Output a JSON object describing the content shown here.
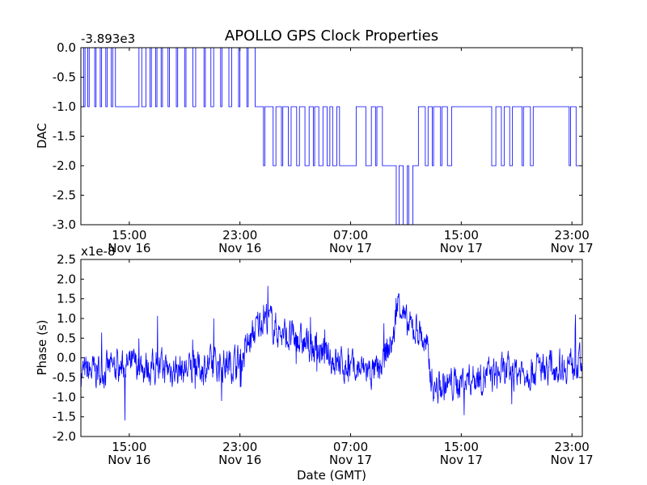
{
  "chart_data": [
    {
      "type": "line",
      "title": "APOLLO GPS Clock Properties",
      "xlabel": "",
      "ylabel": "DAC",
      "offset_label": "-3.893e3",
      "x_units": "hours since Nov 16 00:00 GMT",
      "xlim": [
        11.5,
        47.75
      ],
      "ylim": [
        -3.0,
        0.0
      ],
      "yticks": [
        "0.0",
        "-0.5",
        "-1.0",
        "-1.5",
        "-2.0",
        "-2.5",
        "-3.0"
      ],
      "ytick_values": [
        0,
        -0.5,
        -1,
        -1.5,
        -2,
        -2.5,
        -3
      ],
      "xticks": [
        {
          "value": 15,
          "time": "15:00",
          "date": "Nov 16"
        },
        {
          "value": 23,
          "time": "23:00",
          "date": "Nov 16"
        },
        {
          "value": 31,
          "time": "07:00",
          "date": "Nov 17"
        },
        {
          "value": 39,
          "time": "15:00",
          "date": "Nov 17"
        },
        {
          "value": 47,
          "time": "23:00",
          "date": "Nov 17"
        }
      ],
      "color": "#0000ff",
      "steps": [
        [
          11.5,
          0
        ],
        [
          11.7,
          -1
        ],
        [
          11.8,
          0
        ],
        [
          12.0,
          -1
        ],
        [
          12.1,
          0
        ],
        [
          12.5,
          -1
        ],
        [
          12.6,
          0
        ],
        [
          12.9,
          -1
        ],
        [
          13.0,
          0
        ],
        [
          13.3,
          -1
        ],
        [
          13.4,
          0
        ],
        [
          13.7,
          -1
        ],
        [
          13.8,
          0
        ],
        [
          14.0,
          -1
        ],
        [
          15.7,
          0
        ],
        [
          15.9,
          -1
        ],
        [
          16.2,
          0
        ],
        [
          16.5,
          -1
        ],
        [
          16.6,
          0
        ],
        [
          16.9,
          -1
        ],
        [
          17.0,
          0
        ],
        [
          17.3,
          -1
        ],
        [
          17.4,
          0
        ],
        [
          17.8,
          -1
        ],
        [
          17.9,
          0
        ],
        [
          18.4,
          -1
        ],
        [
          18.5,
          0
        ],
        [
          19.0,
          -1
        ],
        [
          19.1,
          0
        ],
        [
          19.6,
          -1
        ],
        [
          19.8,
          0
        ],
        [
          20.4,
          -1
        ],
        [
          20.5,
          0
        ],
        [
          20.9,
          -1
        ],
        [
          21.1,
          0
        ],
        [
          21.6,
          -1
        ],
        [
          21.7,
          0
        ],
        [
          22.2,
          -1
        ],
        [
          22.4,
          0
        ],
        [
          22.9,
          -1
        ],
        [
          23.0,
          0
        ],
        [
          23.5,
          -1
        ],
        [
          23.6,
          0
        ],
        [
          24.1,
          -1
        ],
        [
          24.7,
          -2
        ],
        [
          24.8,
          -1
        ],
        [
          25.4,
          -2
        ],
        [
          25.6,
          -1
        ],
        [
          26.0,
          -2
        ],
        [
          26.1,
          -1
        ],
        [
          26.5,
          -2
        ],
        [
          26.7,
          -1
        ],
        [
          27.1,
          -2
        ],
        [
          27.3,
          -1
        ],
        [
          27.7,
          -2
        ],
        [
          28.0,
          -1
        ],
        [
          28.3,
          -2
        ],
        [
          28.4,
          -1
        ],
        [
          28.7,
          -2
        ],
        [
          29.0,
          -1
        ],
        [
          29.3,
          -2
        ],
        [
          29.5,
          -1
        ],
        [
          29.7,
          -2
        ],
        [
          30.0,
          -1
        ],
        [
          30.2,
          -2
        ],
        [
          31.4,
          -1
        ],
        [
          32.1,
          -2
        ],
        [
          32.5,
          -1
        ],
        [
          32.8,
          -2
        ],
        [
          32.9,
          -1
        ],
        [
          33.3,
          -2
        ],
        [
          34.3,
          -3
        ],
        [
          34.5,
          -2
        ],
        [
          34.8,
          -3
        ],
        [
          35.1,
          -2
        ],
        [
          35.2,
          -3
        ],
        [
          35.5,
          -2
        ],
        [
          35.9,
          -1
        ],
        [
          36.4,
          -2
        ],
        [
          36.6,
          -1
        ],
        [
          36.9,
          -2
        ],
        [
          37.0,
          -1
        ],
        [
          37.5,
          -2
        ],
        [
          37.6,
          -1
        ],
        [
          38.0,
          -2
        ],
        [
          38.3,
          -1
        ],
        [
          41.2,
          -2
        ],
        [
          41.5,
          -1
        ],
        [
          41.9,
          -2
        ],
        [
          42.1,
          -1
        ],
        [
          42.5,
          -2
        ],
        [
          42.7,
          -1
        ],
        [
          43.4,
          -2
        ],
        [
          43.5,
          -1
        ],
        [
          44.0,
          -2
        ],
        [
          44.2,
          -1
        ],
        [
          46.8,
          -2
        ],
        [
          46.9,
          -1
        ],
        [
          47.3,
          -2
        ],
        [
          47.75,
          -2
        ]
      ]
    },
    {
      "type": "line",
      "title": "",
      "xlabel": "Date (GMT)",
      "ylabel": "Phase (s)",
      "offset_label": "x1e-8",
      "x_units": "hours since Nov 16 00:00 GMT",
      "xlim": [
        11.5,
        47.75
      ],
      "ylim": [
        -2.0,
        2.5
      ],
      "yticks": [
        "2.5",
        "2.0",
        "1.5",
        "1.0",
        "0.5",
        "0.0",
        "-0.5",
        "-1.0",
        "-1.5",
        "-2.0"
      ],
      "ytick_values": [
        2.5,
        2,
        1.5,
        1,
        0.5,
        0,
        -0.5,
        -1,
        -1.5,
        -2
      ],
      "xticks": [
        {
          "value": 15,
          "time": "15:00",
          "date": "Nov 16"
        },
        {
          "value": 23,
          "time": "23:00",
          "date": "Nov 16"
        },
        {
          "value": 31,
          "time": "07:00",
          "date": "Nov 17"
        },
        {
          "value": 39,
          "time": "15:00",
          "date": "Nov 17"
        },
        {
          "value": 47,
          "time": "23:00",
          "date": "Nov 17"
        }
      ],
      "color": "#0000ff",
      "trend": [
        [
          11.5,
          -0.4
        ],
        [
          15,
          -0.2
        ],
        [
          19,
          -0.3
        ],
        [
          23,
          -0.1
        ],
        [
          24,
          0.6
        ],
        [
          24.7,
          1.1
        ],
        [
          26,
          0.6
        ],
        [
          28,
          0.3
        ],
        [
          30,
          -0.1
        ],
        [
          31,
          -0.3
        ],
        [
          32,
          -0.3
        ],
        [
          33,
          -0.4
        ],
        [
          34.1,
          0.5
        ],
        [
          34.5,
          1.6
        ],
        [
          35,
          0.8
        ],
        [
          36,
          0.7
        ],
        [
          36.5,
          0.2
        ],
        [
          37,
          -0.8
        ],
        [
          38,
          -0.7
        ],
        [
          40,
          -0.5
        ],
        [
          44,
          -0.3
        ],
        [
          47.75,
          -0.1
        ]
      ],
      "noise_amplitude": 0.35
    }
  ]
}
